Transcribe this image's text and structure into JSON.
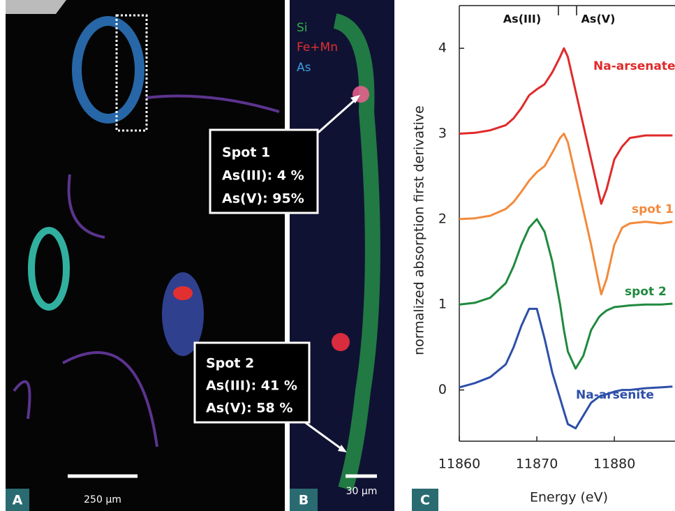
{
  "panels": {
    "a": {
      "label": "A",
      "scale_bar": "250 µm"
    },
    "b": {
      "label": "B",
      "scale_bar": "30 µm",
      "channels": [
        "Si",
        "Fe+Mn",
        "As"
      ],
      "callouts": [
        {
          "title": "Spot 1",
          "lines": [
            "As(III): 4 %",
            "As(V): 95%"
          ]
        },
        {
          "title": "Spot 2",
          "lines": [
            "As(III): 41 %",
            "As(V): 58 %"
          ]
        }
      ]
    }
  },
  "chart_data": {
    "type": "line",
    "panel_label": "C",
    "x_label": "Energy (eV)",
    "y_label": "normalized absorption first derivative",
    "annotations": [
      "As(III)",
      "As(V)"
    ],
    "xlim": [
      11860,
      11888
    ],
    "ylim": [
      -0.6,
      4.5
    ],
    "xticks": [
      11860,
      11870,
      11880
    ],
    "yticks": [
      0,
      1,
      2,
      3,
      4
    ],
    "x": [
      11860,
      11862,
      11864,
      11866,
      11867,
      11868,
      11869,
      11870,
      11871,
      11872,
      11873,
      11873.5,
      11874,
      11875,
      11876,
      11877,
      11878,
      11878.3,
      11879,
      11880,
      11881,
      11882,
      11884,
      11886,
      11887.5
    ],
    "series": [
      {
        "name": "Na-arsenate",
        "color": "#e02a2a",
        "values": [
          3.0,
          3.01,
          3.04,
          3.1,
          3.18,
          3.3,
          3.45,
          3.52,
          3.58,
          3.72,
          3.9,
          4.0,
          3.9,
          3.5,
          3.1,
          2.7,
          2.3,
          2.18,
          2.35,
          2.7,
          2.85,
          2.95,
          2.98,
          2.98,
          2.98
        ]
      },
      {
        "name": "spot 1",
        "color": "#f28a3c",
        "values": [
          2.0,
          2.01,
          2.04,
          2.12,
          2.2,
          2.32,
          2.45,
          2.55,
          2.62,
          2.78,
          2.95,
          3.0,
          2.9,
          2.5,
          2.1,
          1.7,
          1.25,
          1.12,
          1.3,
          1.7,
          1.9,
          1.95,
          1.97,
          1.95,
          1.97
        ]
      },
      {
        "name": "spot 2",
        "color": "#1f8a3e",
        "values": [
          1.0,
          1.02,
          1.08,
          1.25,
          1.45,
          1.7,
          1.9,
          2.0,
          1.85,
          1.5,
          1.0,
          0.7,
          0.45,
          0.25,
          0.4,
          0.7,
          0.85,
          0.88,
          0.93,
          0.97,
          0.98,
          0.99,
          1.0,
          1.0,
          1.01
        ]
      },
      {
        "name": "Na-arsenite",
        "color": "#2d4fa8",
        "values": [
          0.03,
          0.08,
          0.15,
          0.3,
          0.5,
          0.75,
          0.95,
          0.95,
          0.6,
          0.2,
          -0.1,
          -0.25,
          -0.4,
          -0.45,
          -0.3,
          -0.15,
          -0.08,
          -0.07,
          -0.05,
          -0.02,
          0,
          0.0,
          0.02,
          0.03,
          0.04
        ]
      }
    ]
  }
}
